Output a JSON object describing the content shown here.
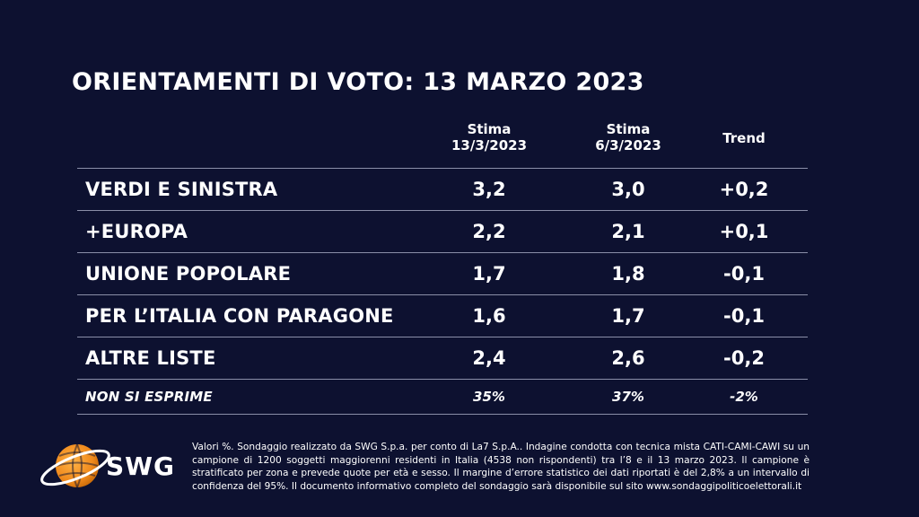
{
  "title": "ORIENTAMENTI DI VOTO: 13 MARZO 2023",
  "chart_data": {
    "type": "table",
    "title": "ORIENTAMENTI DI VOTO: 13 MARZO 2023",
    "columns": [
      {
        "line1": "Stima",
        "line2": "13/3/2023"
      },
      {
        "line1": "Stima",
        "line2": "6/3/2023"
      },
      {
        "line1": "Trend",
        "line2": ""
      }
    ],
    "rows": [
      {
        "label": "VERDI E SINISTRA",
        "values": [
          "3,2",
          "3,0",
          "+0,2"
        ]
      },
      {
        "label": "+EUROPA",
        "values": [
          "2,2",
          "2,1",
          "+0,1"
        ]
      },
      {
        "label": "UNIONE POPOLARE",
        "values": [
          "1,7",
          "1,8",
          "-0,1"
        ]
      },
      {
        "label": "PER L’ITALIA CON PARAGONE",
        "values": [
          "1,6",
          "1,7",
          "-0,1"
        ]
      },
      {
        "label": "ALTRE LISTE",
        "values": [
          "2,4",
          "2,6",
          "-0,2"
        ]
      },
      {
        "label": "NON SI ESPRIME",
        "values": [
          "35%",
          "37%",
          "-2%"
        ]
      }
    ]
  },
  "logo": {
    "text": "SWG",
    "colors": {
      "orange": "#f08a1c",
      "ring": "#ffffff"
    }
  },
  "footnote": "Valori %. Sondaggio realizzato da SWG S.p.a. per conto di La7 S.p.A.. Indagine condotta con tecnica mista CATI-CAMI-CAWI su un campione di 1200 soggetti maggiorenni residenti in Italia (4538 non rispondenti) tra l’8 e il 13 marzo 2023. Il campione è stratificato per zona e prevede quote per età e sesso. Il margine d’errore statistico dei dati riportati è del 2,8% a un intervallo di confidenza del 95%. Il documento informativo completo del sondaggio sarà disponibile sul sito www.sondaggipoliticoelettorali.it",
  "colors": {
    "background": "#0d1130",
    "text": "#ffffff",
    "rule": "#8a8ea8"
  }
}
